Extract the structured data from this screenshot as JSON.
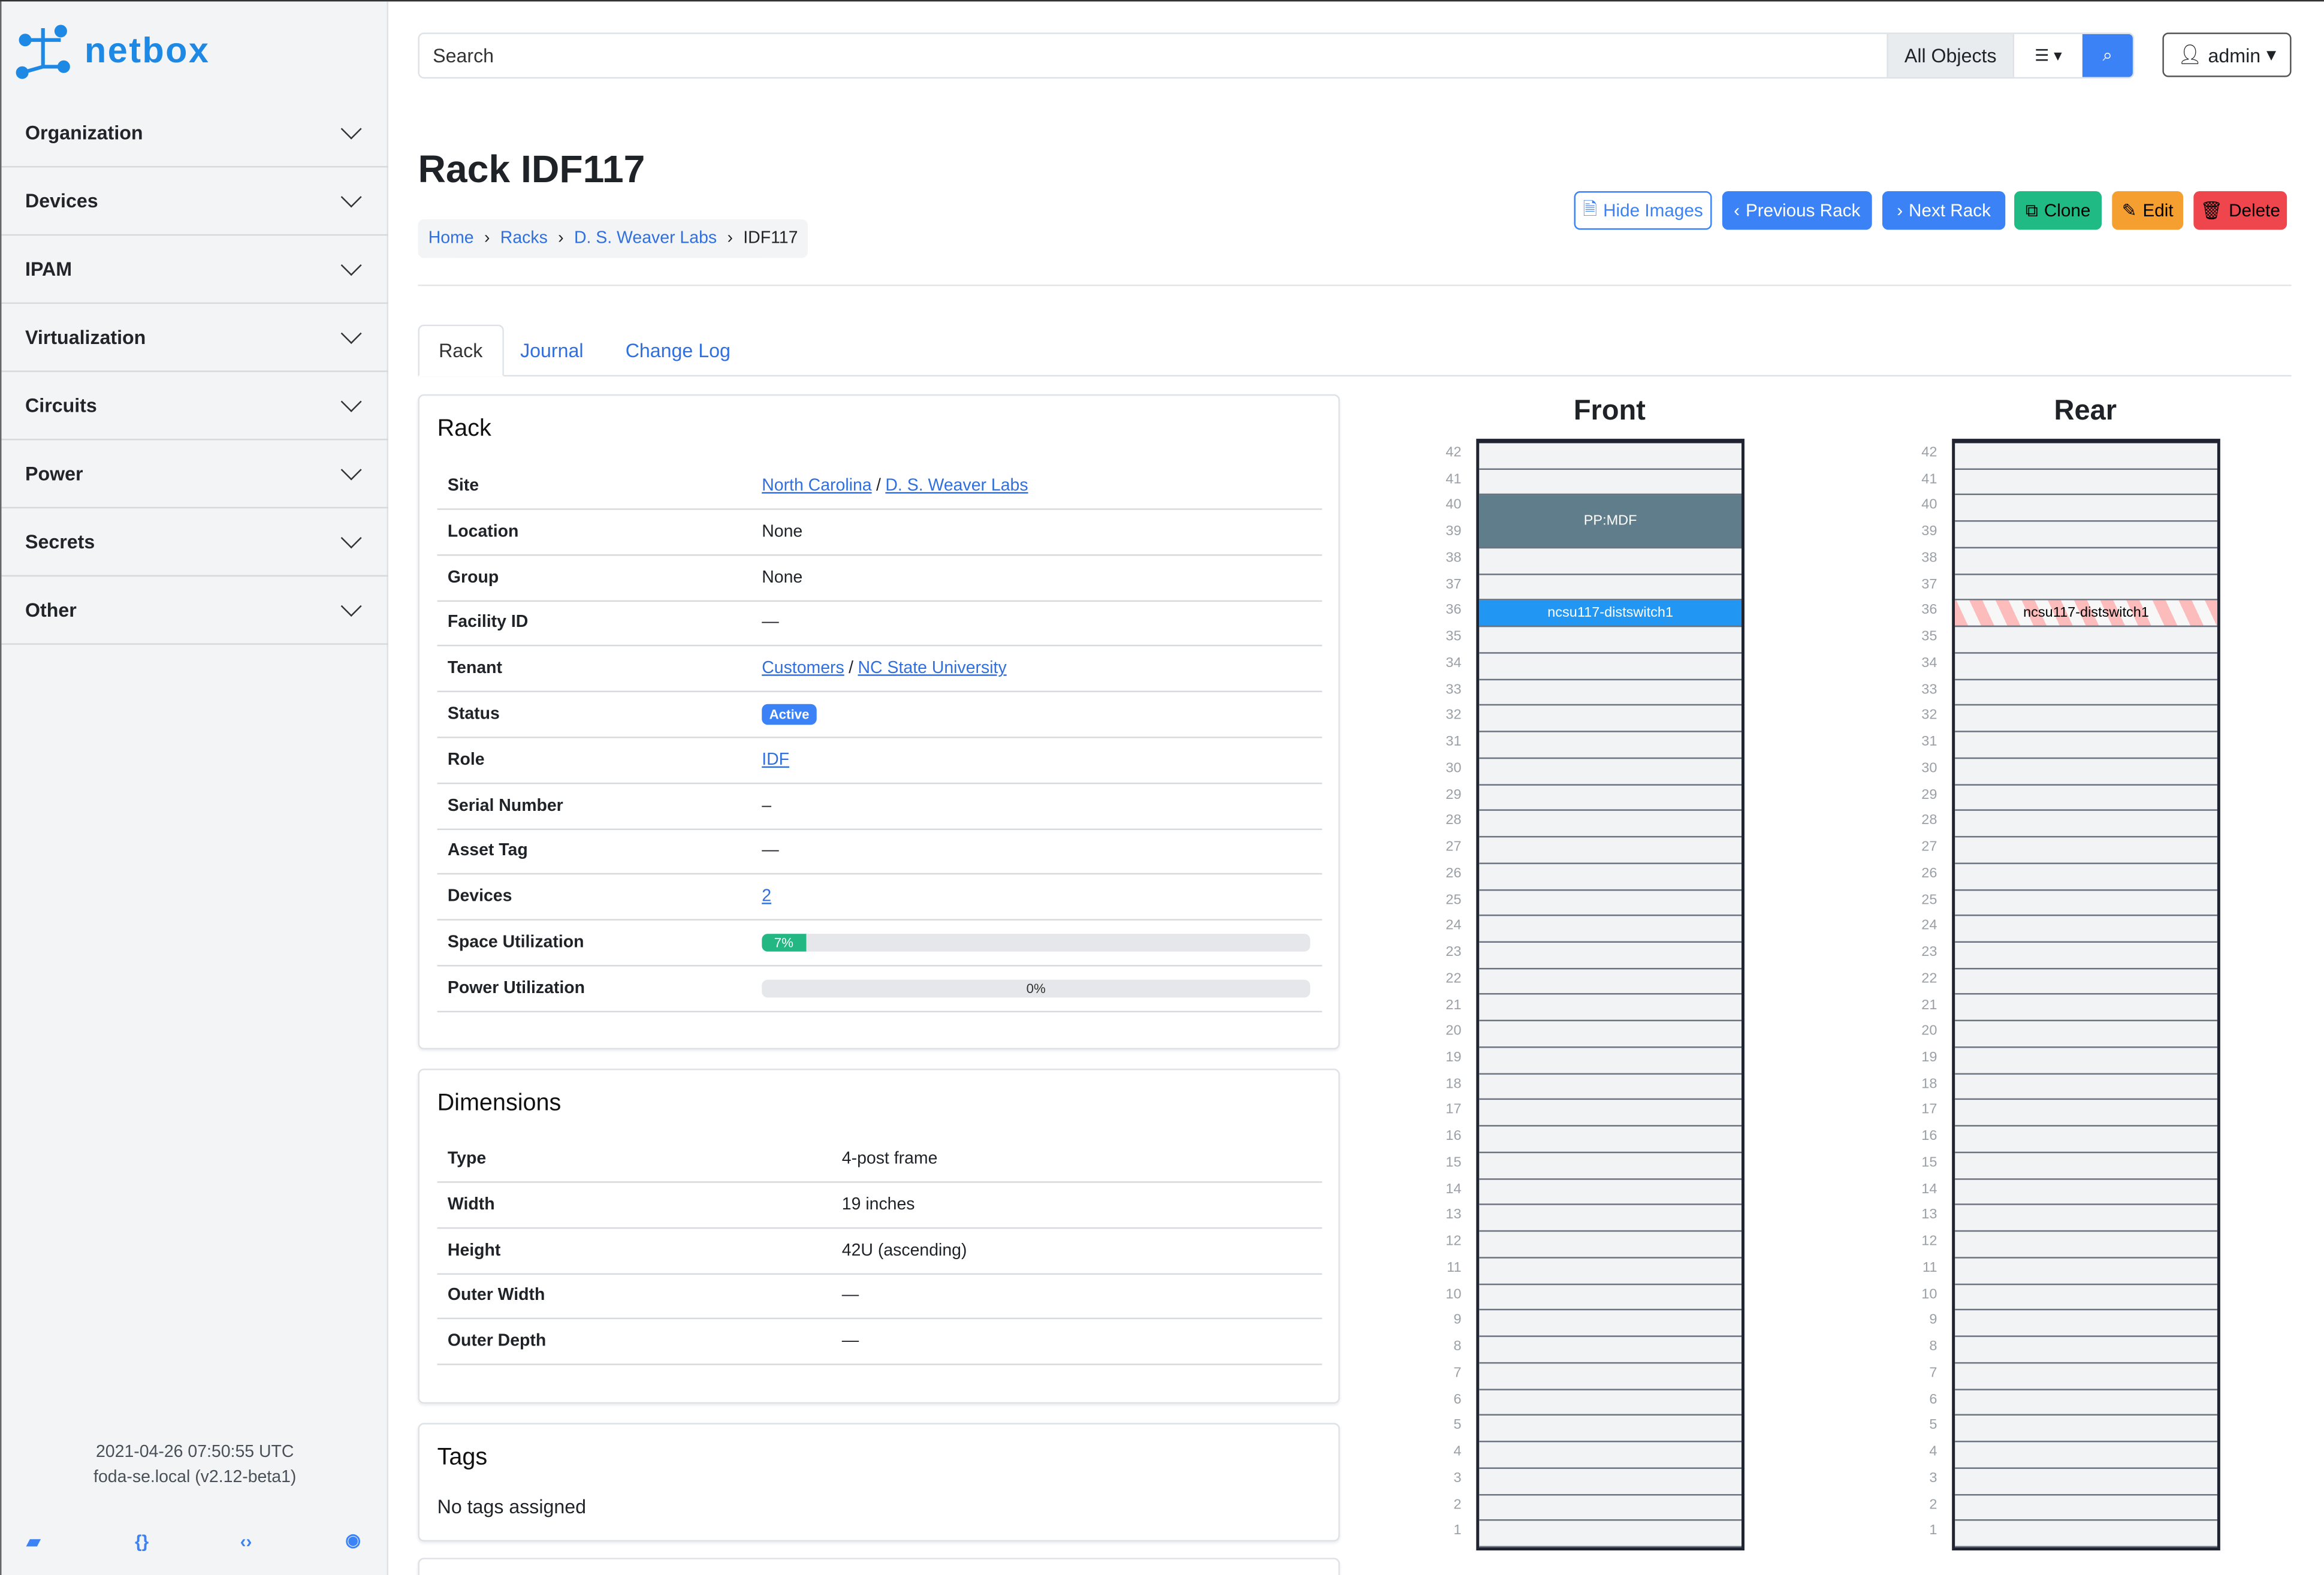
{
  "app": {
    "logo_text": "netbox"
  },
  "sidebar": {
    "items": [
      {
        "label": "Organization"
      },
      {
        "label": "Devices"
      },
      {
        "label": "IPAM"
      },
      {
        "label": "Virtualization"
      },
      {
        "label": "Circuits"
      },
      {
        "label": "Power"
      },
      {
        "label": "Secrets"
      },
      {
        "label": "Other"
      }
    ],
    "footer": {
      "timestamp": "2021-04-26 07:50:55 UTC",
      "host": "foda-se.local (v2.12-beta1)",
      "icons": [
        "book-icon",
        "braces-icon",
        "code-icon",
        "lifebuoy-icon"
      ]
    }
  },
  "header": {
    "search_placeholder": "Search",
    "scope": "All Objects",
    "user": "admin"
  },
  "page": {
    "title": "Rack IDF117",
    "breadcrumb": [
      "Home",
      "Racks",
      "D. S. Weaver Labs",
      "IDF117"
    ],
    "buttons": {
      "hide_images": "Hide Images",
      "previous": "Previous Rack",
      "next": "Next Rack",
      "clone": "Clone",
      "edit": "Edit",
      "delete": "Delete"
    },
    "tabs": [
      "Rack",
      "Journal",
      "Change Log"
    ]
  },
  "rack_card": {
    "title": "Rack",
    "rows": [
      {
        "label": "Site",
        "links": [
          "North Carolina",
          "D. S. Weaver Labs"
        ]
      },
      {
        "label": "Location",
        "value": "None"
      },
      {
        "label": "Group",
        "value": "None"
      },
      {
        "label": "Facility ID",
        "value": "—"
      },
      {
        "label": "Tenant",
        "links": [
          "Customers",
          "NC State University"
        ]
      },
      {
        "label": "Status",
        "badge": "Active"
      },
      {
        "label": "Role",
        "links": [
          "IDF"
        ]
      },
      {
        "label": "Serial Number",
        "value": "–"
      },
      {
        "label": "Asset Tag",
        "value": "—"
      },
      {
        "label": "Devices",
        "links": [
          "2"
        ]
      },
      {
        "label": "Space Utilization",
        "progress": 7,
        "progress_label": "7%"
      },
      {
        "label": "Power Utilization",
        "progress": 0,
        "progress_label": "0%"
      }
    ]
  },
  "dimensions": {
    "title": "Dimensions",
    "rows": [
      {
        "label": "Type",
        "value": "4-post frame"
      },
      {
        "label": "Width",
        "value": "19 inches"
      },
      {
        "label": "Height",
        "value": "42U (ascending)"
      },
      {
        "label": "Outer Width",
        "value": "—"
      },
      {
        "label": "Outer Depth",
        "value": "—"
      }
    ]
  },
  "tags": {
    "title": "Tags",
    "empty": "No tags assigned"
  },
  "elevations": {
    "height_u": 42,
    "front": {
      "title": "Front",
      "devices": [
        {
          "name": "PP:MDF",
          "position": 39,
          "u_height": 2,
          "color": "#607d8b",
          "text_color": "#ffffff"
        },
        {
          "name": "ncsu117-distswitch1",
          "position": 36,
          "u_height": 1,
          "color": "#2196f3",
          "text_color": "#ffffff"
        }
      ]
    },
    "rear": {
      "title": "Rear",
      "devices": [
        {
          "name": "ncsu117-distswitch1",
          "position": 36,
          "u_height": 1,
          "striped": true,
          "color": "#fdbcbc",
          "text_color": "#000000"
        }
      ]
    }
  }
}
